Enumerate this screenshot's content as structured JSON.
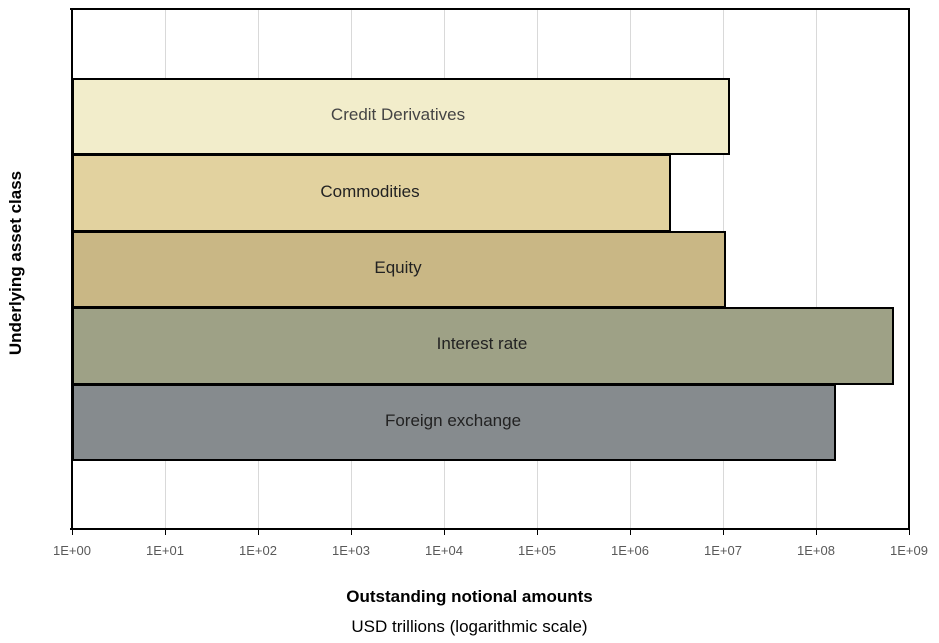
{
  "chart_data": {
    "type": "bar",
    "orientation": "horizontal",
    "title": "",
    "xlabel": "Outstanding notional amounts",
    "xlabel_sub": "USD trillions (logarithmic scale)",
    "ylabel": "Underlying asset class",
    "xscale": "log",
    "xlim": [
      1,
      1000000000
    ],
    "grid": true,
    "legend": null,
    "x_ticks": [
      "1E+00",
      "1E+01",
      "1E+02",
      "1E+03",
      "1E+04",
      "1E+05",
      "1E+06",
      "1E+07",
      "1E+08",
      "1E+09"
    ],
    "categories": [
      "Credit Derivatives",
      "Commodities",
      "Equity",
      "Interest rate",
      "Foreign exchange"
    ],
    "values": [
      11500000,
      2700000,
      10500000,
      670000000,
      160000000
    ],
    "colors": [
      "#f2edcb",
      "#e2d29f",
      "#c9b785",
      "#9ea186",
      "#868b8e"
    ]
  },
  "axis": {
    "ylabel": "Underlying asset class",
    "xlabel": "Outstanding notional amounts",
    "xlabel_sub": "USD trillions (logarithmic scale)",
    "ticks": [
      "1E+00",
      "1E+01",
      "1E+02",
      "1E+03",
      "1E+04",
      "1E+05",
      "1E+06",
      "1E+07",
      "1E+08",
      "1E+09"
    ]
  },
  "bars": [
    {
      "label": "Credit Derivatives",
      "color": "#f2edcb",
      "text_color": "#444444"
    },
    {
      "label": "Commodities",
      "color": "#e2d29f",
      "text_color": "#222222"
    },
    {
      "label": "Equity",
      "color": "#c9b785",
      "text_color": "#222222"
    },
    {
      "label": "Interest rate",
      "color": "#9ea186",
      "text_color": "#222222"
    },
    {
      "label": "Foreign exchange",
      "color": "#868b8e",
      "text_color": "#222222"
    }
  ]
}
